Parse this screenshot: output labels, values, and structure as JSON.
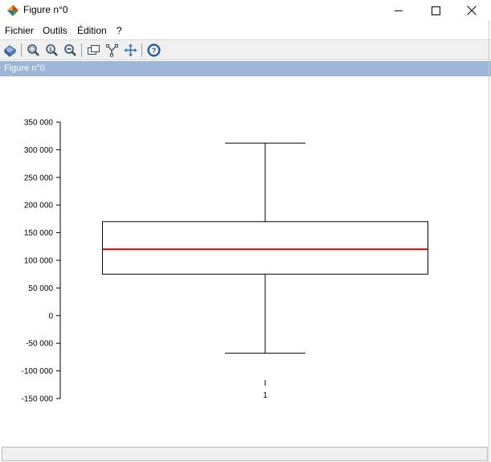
{
  "window": {
    "title": "Figure n°0",
    "icon": "scilab-logo-icon",
    "controls": [
      "minimize-icon",
      "maximize-icon",
      "close-icon"
    ]
  },
  "menu": {
    "items": [
      {
        "label": "Fichier"
      },
      {
        "label": "Outils"
      },
      {
        "label": "Édition"
      },
      {
        "label": "?"
      }
    ]
  },
  "toolbar": {
    "buttons": [
      "rotate-icon",
      "zoom-icon",
      "zoom-reset-icon",
      "zoom-out-icon",
      "datatip-icon",
      "data-editor-icon",
      "pan-icon",
      "help-icon"
    ]
  },
  "figure": {
    "label": "Figure n°0"
  },
  "chart_data": {
    "type": "box",
    "title": "",
    "xlabel": "",
    "ylabel": "",
    "categories": [
      "1"
    ],
    "boxes": [
      {
        "category": "1",
        "whisker_low": -68000,
        "q1": 75000,
        "median": 120000,
        "q3": 170000,
        "whisker_high": 312000
      }
    ],
    "ylim": [
      -150000,
      350000
    ],
    "y_ticks": [
      350000,
      300000,
      250000,
      200000,
      150000,
      100000,
      50000,
      0,
      -50000,
      -100000,
      -150000
    ],
    "y_tick_labels": [
      "350 000",
      "300 000",
      "250 000",
      "200 000",
      "150 000",
      "100 000",
      "50 000",
      "0",
      "-50 000",
      "-100 000",
      "-150 000"
    ],
    "x_tick_labels": [
      "1"
    ],
    "grid": false,
    "colors": {
      "median": "#d00000",
      "box": "#000000"
    }
  }
}
